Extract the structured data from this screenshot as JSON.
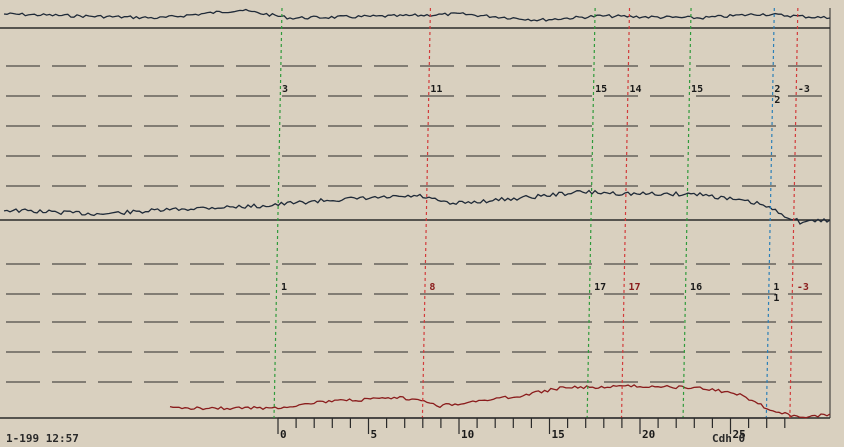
{
  "colors": {
    "paper": "#d9d0bf",
    "trace": "#1f2a38",
    "lower_trace": "#8a1c1c",
    "green_marker": "#2e9a3a",
    "red_marker": "#d23a3a",
    "blue_marker": "#2a7fb8",
    "grid": "#2a2a2a"
  },
  "markers": [
    {
      "minute": 0,
      "color": "green",
      "upper_label": "3",
      "lower_label": "1"
    },
    {
      "minute": 8.2,
      "color": "red",
      "upper_label": "11",
      "lower_label": "8"
    },
    {
      "minute": 17.3,
      "color": "green",
      "upper_label": "15",
      "lower_label": "17"
    },
    {
      "minute": 19.2,
      "color": "red",
      "upper_label": "14",
      "lower_label": "17"
    },
    {
      "minute": 22.6,
      "color": "green",
      "upper_label": "15",
      "lower_label": "16"
    },
    {
      "minute": 27.2,
      "color": "blue",
      "upper_label": "2\n2",
      "lower_label": "1\n1"
    },
    {
      "minute": 28.5,
      "color": "red",
      "upper_label": "-3",
      "lower_label": "-3"
    }
  ],
  "time_axis": {
    "ticks": [
      "0",
      "5",
      "10",
      "15",
      "20",
      "25"
    ]
  },
  "footer": {
    "left_text": "1-199 12:57",
    "right_text": "Cdh 0"
  }
}
